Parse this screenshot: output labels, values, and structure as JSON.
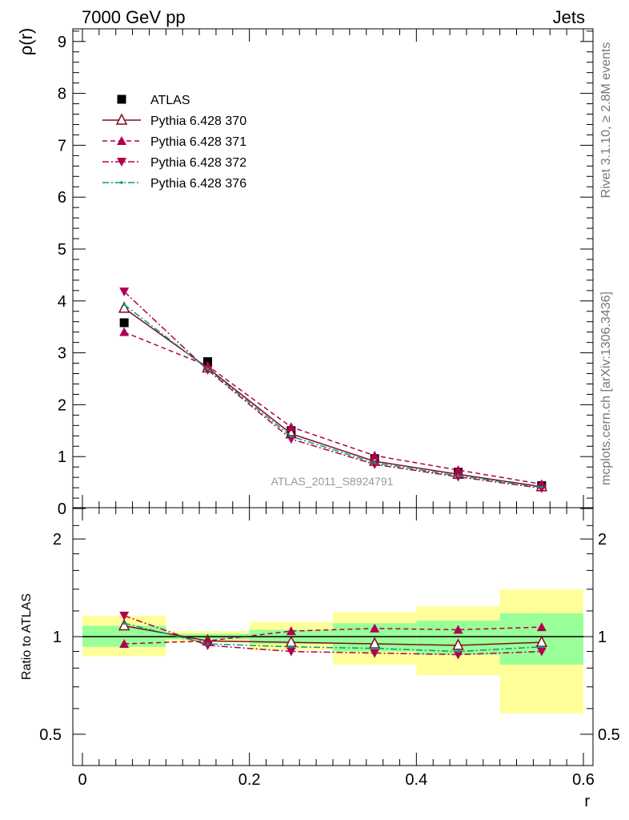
{
  "header": {
    "left": "7000 GeV pp",
    "right": "Jets"
  },
  "side_labels": {
    "rivet": "Rivet 3.1.10, ≥ 2.8M events",
    "mcplots": "mcplots.cern.ch [arXiv:1306.3436]"
  },
  "analysis_id": "ATLAS_2011_S8924791",
  "colors": {
    "data": "#000000",
    "p370": "#7a0f1e",
    "p371": "#b0004e",
    "p372": "#b0004e",
    "p376": "#009e7a",
    "band_outer": "#ffff99",
    "band_inner": "#99ff99"
  },
  "chart_data": [
    {
      "type": "line",
      "panel": "main",
      "ylabel": "ρ(r)",
      "xlabel": "",
      "xlim": [
        0,
        0.6
      ],
      "ylim": [
        0,
        9.3
      ],
      "yticks": [
        "0",
        "1",
        "2",
        "3",
        "4",
        "5",
        "6",
        "7",
        "8",
        "9"
      ],
      "x": [
        0.05,
        0.15,
        0.25,
        0.35,
        0.45,
        0.55
      ],
      "series": [
        {
          "name": "ATLAS",
          "marker": "square",
          "values": [
            3.58,
            2.83,
            1.5,
            0.96,
            0.7,
            0.44
          ]
        },
        {
          "name": "Pythia 6.428 370",
          "marker": "triangle-up-open",
          "line": "solid",
          "values": [
            3.86,
            2.71,
            1.44,
            0.91,
            0.66,
            0.42
          ]
        },
        {
          "name": "Pythia 6.428 371",
          "marker": "triangle-up",
          "line": "dashed",
          "values": [
            3.4,
            2.75,
            1.57,
            1.02,
            0.74,
            0.47
          ]
        },
        {
          "name": "Pythia 6.428 372",
          "marker": "triangle-down",
          "line": "dashdot",
          "values": [
            4.18,
            2.67,
            1.34,
            0.85,
            0.61,
            0.39
          ]
        },
        {
          "name": "Pythia 6.428 376",
          "marker": "dot",
          "line": "dashdot",
          "values": [
            3.93,
            2.69,
            1.39,
            0.88,
            0.63,
            0.41
          ]
        }
      ]
    },
    {
      "type": "line",
      "panel": "ratio",
      "ylabel": "Ratio to ATLAS",
      "xlabel": "r",
      "xlim": [
        0,
        0.6
      ],
      "ylim": [
        0.4,
        2.4
      ],
      "log_y": true,
      "yticks": [
        "0.5",
        "1",
        "2"
      ],
      "xticks": [
        "0",
        "0.2",
        "0.4",
        "0.6"
      ],
      "bands": [
        {
          "x0": 0.0,
          "x1": 0.1,
          "outer": [
            0.87,
            1.16
          ],
          "inner": [
            0.93,
            1.08
          ]
        },
        {
          "x0": 0.1,
          "x1": 0.2,
          "outer": [
            0.96,
            1.04
          ],
          "inner": [
            0.98,
            1.02
          ]
        },
        {
          "x0": 0.2,
          "x1": 0.3,
          "outer": [
            0.91,
            1.11
          ],
          "inner": [
            0.95,
            1.05
          ]
        },
        {
          "x0": 0.3,
          "x1": 0.4,
          "outer": [
            0.82,
            1.19
          ],
          "inner": [
            0.9,
            1.1
          ]
        },
        {
          "x0": 0.4,
          "x1": 0.5,
          "outer": [
            0.76,
            1.24
          ],
          "inner": [
            0.88,
            1.12
          ]
        },
        {
          "x0": 0.5,
          "x1": 0.6,
          "outer": [
            0.58,
            1.4
          ],
          "inner": [
            0.82,
            1.18
          ]
        }
      ],
      "x": [
        0.05,
        0.15,
        0.25,
        0.35,
        0.45,
        0.55
      ],
      "series": [
        {
          "name": "Pythia 6.428 370",
          "marker": "triangle-up-open",
          "line": "solid",
          "values": [
            1.08,
            0.97,
            0.96,
            0.95,
            0.94,
            0.96
          ]
        },
        {
          "name": "Pythia 6.428 371",
          "marker": "triangle-up",
          "line": "dashed",
          "values": [
            0.95,
            0.97,
            1.04,
            1.06,
            1.05,
            1.07
          ]
        },
        {
          "name": "Pythia 6.428 372",
          "marker": "triangle-down",
          "line": "dashdot",
          "values": [
            1.16,
            0.94,
            0.9,
            0.89,
            0.88,
            0.9
          ]
        },
        {
          "name": "Pythia 6.428 376",
          "marker": "dot",
          "line": "dashdot",
          "values": [
            1.1,
            0.95,
            0.93,
            0.92,
            0.9,
            0.93
          ]
        }
      ]
    }
  ]
}
